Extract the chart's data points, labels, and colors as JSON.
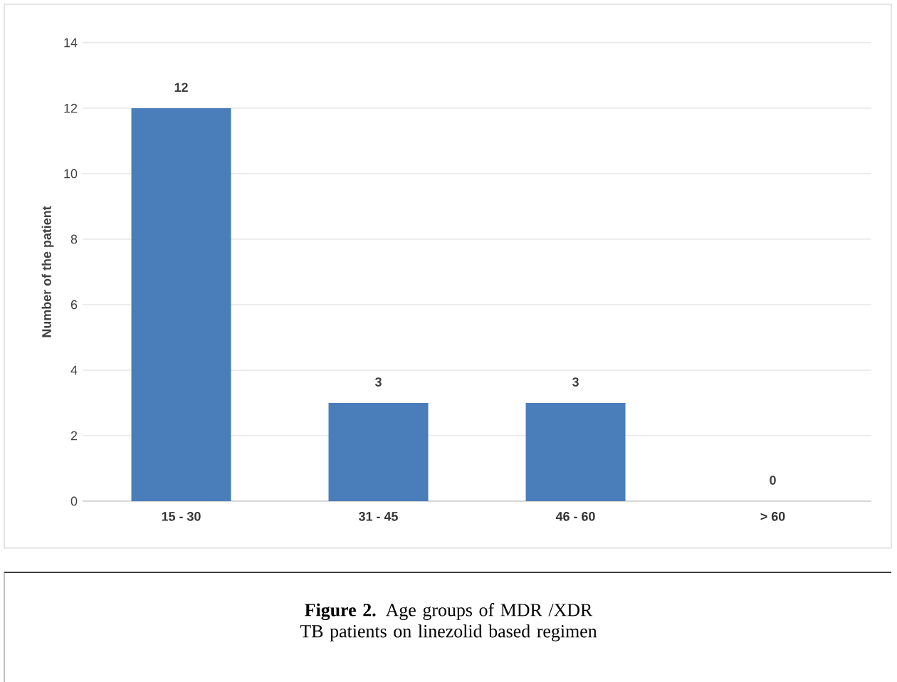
{
  "chart_data": {
    "type": "bar",
    "ylabel": "Number of the patient",
    "categories": [
      "15 - 30",
      "31 - 45",
      "46 - 60",
      "> 60"
    ],
    "values": [
      12,
      3,
      3,
      0
    ],
    "color": "#4a7ebb",
    "ylim": [
      0,
      14
    ],
    "yticks": [
      0,
      2,
      4,
      6,
      8,
      10,
      12,
      14
    ],
    "grid": "y",
    "data_labels": true,
    "annotations": [
      "**Figure 2.** Age groups of MDR /XDR TB patients on linezolid based  regimen"
    ]
  }
}
